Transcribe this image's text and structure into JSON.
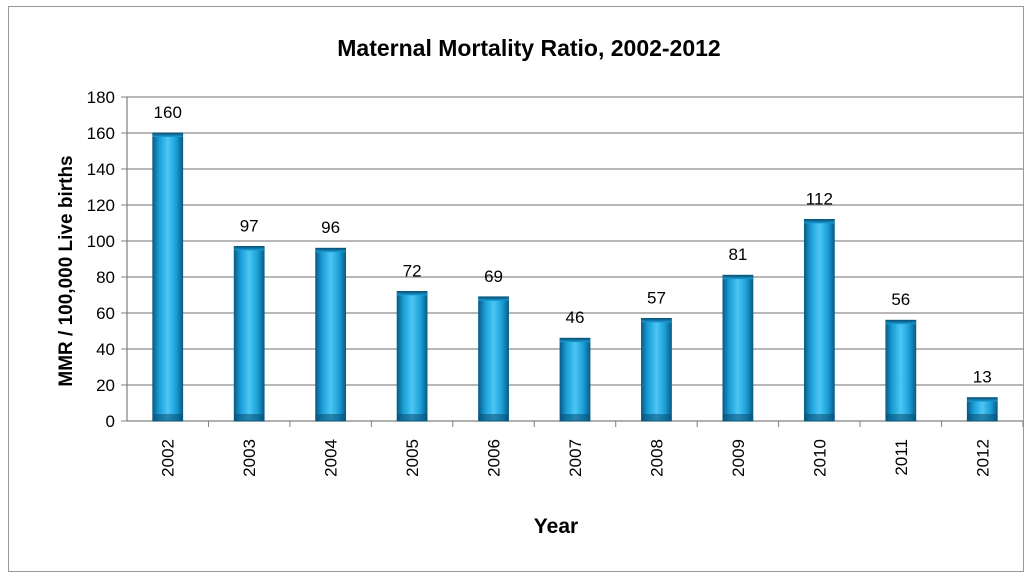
{
  "chart_data": {
    "type": "bar",
    "title": "Maternal Mortality Ratio, 2002-2012",
    "xlabel": "Year",
    "ylabel": "MMR / 100,000 Live births",
    "categories": [
      "2002",
      "2003",
      "2004",
      "2005",
      "2006",
      "2007",
      "2008",
      "2009",
      "2010",
      "2011",
      "2012"
    ],
    "values": [
      160,
      97,
      96,
      72,
      69,
      46,
      57,
      81,
      112,
      56,
      13
    ],
    "ylim": [
      0,
      180
    ],
    "yticks": [
      0,
      20,
      40,
      60,
      80,
      100,
      120,
      140,
      160,
      180
    ],
    "grid": true,
    "legend": "none",
    "bar_color": "#1a9fd8"
  }
}
